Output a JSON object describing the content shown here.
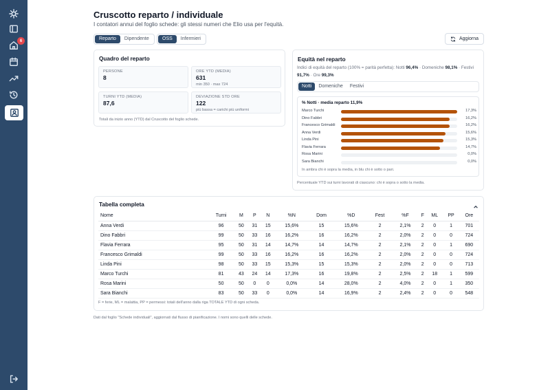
{
  "sidebar": {
    "items": [
      {
        "icon": "logo-icon"
      },
      {
        "icon": "sidebar-toggle-icon"
      },
      {
        "icon": "home-icon",
        "badge": "6"
      },
      {
        "icon": "calendar-icon"
      },
      {
        "icon": "trending-icon"
      },
      {
        "icon": "history-icon"
      },
      {
        "icon": "user-card-icon",
        "active": true
      },
      {
        "icon": "logout-icon"
      }
    ]
  },
  "header": {
    "title": "Cruscotto reparto / individuale",
    "subtitle": "I contatori annui del foglio schede: gli stessi numeri che Elio usa per l'equità."
  },
  "view_toggle": {
    "options": [
      "Reparto",
      "Dipendente"
    ],
    "selected": "Reparto"
  },
  "role_toggle": {
    "options": [
      "OSS",
      "Infermieri"
    ],
    "selected": "OSS"
  },
  "refresh_label": "Aggiorna",
  "overview": {
    "title": "Quadro del reparto",
    "kpis": [
      {
        "label": "PERSONE",
        "value": "8",
        "sub": ""
      },
      {
        "label": "ORE YTD (MEDIA)",
        "value": "631",
        "sub": "min 350 · max 724"
      },
      {
        "label": "TURNI YTD (MEDIA)",
        "value": "87,6",
        "sub": ""
      },
      {
        "label": "DEVIAZIONE STD ORE",
        "value": "122",
        "sub": "più bassa = carichi più uniformi"
      }
    ],
    "note": "Totali da inizio anno (YTD) dal Cruscotto del foglio schede."
  },
  "equity": {
    "title": "Equità nel reparto",
    "desc_prefix": "Indici di equità del reparto (100% = parità perfetta): Notti ",
    "notti": "96,4%",
    "desc_mid1": " · Domeniche ",
    "domeniche": "98,1%",
    "desc_mid2": " · Festivi ",
    "festivi": "91,7%",
    "desc_mid3": " · Ore ",
    "ore": "99,3%",
    "tabs": [
      "Notti",
      "Domeniche",
      "Festivi"
    ],
    "selected_tab": "Notti",
    "chart_heading": "% Notti · media reparto 11,9%",
    "chart_legend": "In ambra chi è sopra la media, in blu chi è sotto o pari.",
    "note": "Percentuale YTD sui turni lavorati di ciascuno: chi è sopra o sotto la media."
  },
  "chart_data": {
    "type": "bar",
    "orientation": "horizontal",
    "title": "% Notti · media reparto 11,9%",
    "categories": [
      "Marco Turchi",
      "Dino Fabbri",
      "Francesco Grimaldi",
      "Anna Verdi",
      "Linda Pini",
      "Flavia Ferrara",
      "Rosa Marini",
      "Sara Bianchi"
    ],
    "values": [
      17.3,
      16.2,
      16.2,
      15.6,
      15.3,
      14.7,
      0.0,
      0.0
    ],
    "value_labels": [
      "17,3%",
      "16,2%",
      "16,2%",
      "15,6%",
      "15,3%",
      "14,7%",
      "0,0%",
      "0,0%"
    ],
    "xlim": [
      0,
      17.3
    ],
    "bar_color": "#b45309"
  },
  "table": {
    "title": "Tabella completa",
    "columns": [
      "Nome",
      "Turni",
      "M",
      "P",
      "N",
      "%N",
      "Dom",
      "%D",
      "Fest",
      "%F",
      "F",
      "ML",
      "PP",
      "Ore"
    ],
    "rows": [
      [
        "Anna Verdi",
        "96",
        "50",
        "31",
        "15",
        "15,6%",
        "15",
        "15,6%",
        "2",
        "2,1%",
        "2",
        "0",
        "1",
        "701"
      ],
      [
        "Dino Fabbri",
        "99",
        "50",
        "33",
        "16",
        "16,2%",
        "16",
        "16,2%",
        "2",
        "2,0%",
        "2",
        "0",
        "0",
        "724"
      ],
      [
        "Flavia Ferrara",
        "95",
        "50",
        "31",
        "14",
        "14,7%",
        "14",
        "14,7%",
        "2",
        "2,1%",
        "2",
        "0",
        "1",
        "690"
      ],
      [
        "Francesco Grimaldi",
        "99",
        "50",
        "33",
        "16",
        "16,2%",
        "16",
        "16,2%",
        "2",
        "2,0%",
        "2",
        "0",
        "0",
        "724"
      ],
      [
        "Linda Pini",
        "98",
        "50",
        "33",
        "15",
        "15,3%",
        "15",
        "15,3%",
        "2",
        "2,0%",
        "2",
        "0",
        "0",
        "713"
      ],
      [
        "Marco Turchi",
        "81",
        "43",
        "24",
        "14",
        "17,3%",
        "16",
        "19,8%",
        "2",
        "2,5%",
        "2",
        "18",
        "1",
        "599"
      ],
      [
        "Rosa Marini",
        "50",
        "50",
        "0",
        "0",
        "0,0%",
        "14",
        "28,0%",
        "2",
        "4,0%",
        "2",
        "0",
        "1",
        "350"
      ],
      [
        "Sara Bianchi",
        "83",
        "50",
        "33",
        "0",
        "0,0%",
        "14",
        "16,9%",
        "2",
        "2,4%",
        "2",
        "0",
        "0",
        "548"
      ]
    ],
    "note": "F = ferie, ML = malattia, PP = permessi: totali dell'anno dalla riga TOTALE YTD di ogni scheda."
  },
  "footer": "Dati dal foglio \"Schede individuali\", aggiornati dal flusso di pianificazione. I nomi sono quelli delle schede."
}
